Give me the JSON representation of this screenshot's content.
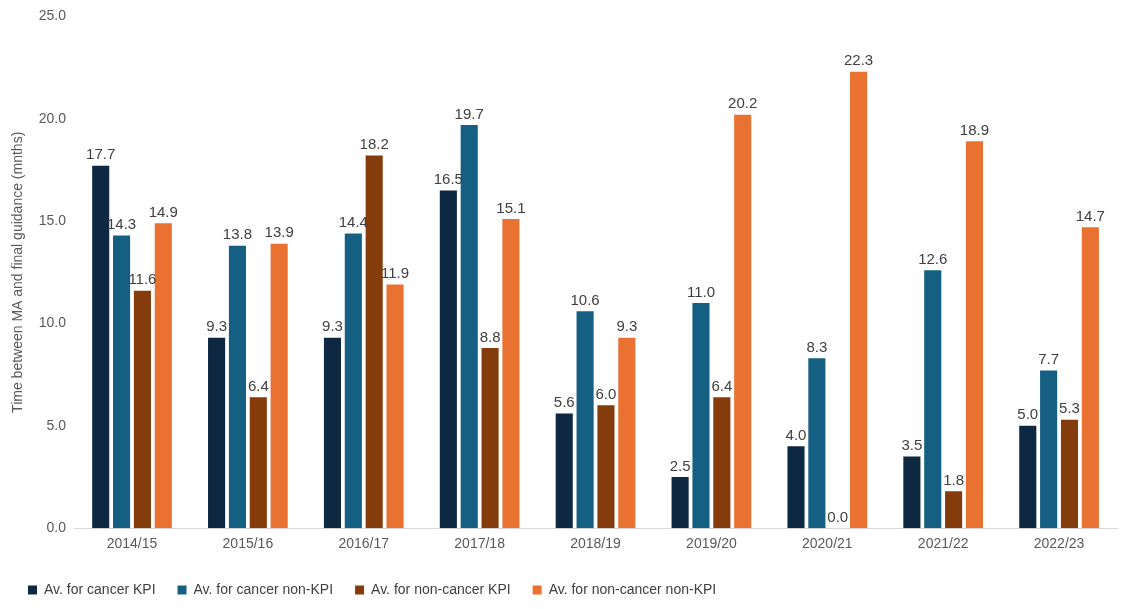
{
  "chart_data": {
    "type": "bar",
    "y_label": "Time between MA and final guidance (mnths)",
    "categories": [
      "2014/15",
      "2015/16",
      "2016/17",
      "2017/18",
      "2018/19",
      "2019/20",
      "2020/21",
      "2021/22",
      "2022/23"
    ],
    "series": [
      {
        "name": "Av. for cancer KPI",
        "color": "#0e2841",
        "values": [
          17.7,
          9.3,
          9.3,
          16.5,
          5.6,
          2.5,
          4.0,
          3.5,
          5.0
        ],
        "value_labels": [
          "17.7",
          "9.3",
          "9.3",
          "16.5",
          "5.6",
          "2.5",
          "4.0",
          "3.5",
          "5.0"
        ]
      },
      {
        "name": "Av. for cancer non-KPI",
        "color": "#156082",
        "values": [
          14.3,
          13.8,
          14.4,
          19.7,
          10.6,
          11.0,
          8.3,
          12.6,
          7.7
        ],
        "value_labels": [
          "14.3",
          "13.8",
          "14.4",
          "19.7",
          "10.6",
          "11.0",
          "8.3",
          "12.6",
          "7.7"
        ]
      },
      {
        "name": "Av. for non-cancer KPI",
        "color": "#843c0c",
        "values": [
          11.6,
          6.4,
          18.2,
          8.8,
          6.0,
          6.4,
          0.0,
          1.8,
          5.3
        ],
        "value_labels": [
          "11.6",
          "6.4",
          "18.2",
          "8.8",
          "6.0",
          "6.4",
          "0.0",
          "1.8",
          "5.3"
        ]
      },
      {
        "name": "Av. for non-cancer non-KPI",
        "color": "#e97132",
        "values": [
          14.9,
          13.9,
          11.9,
          15.1,
          9.3,
          20.2,
          22.3,
          18.9,
          14.7
        ],
        "value_labels": [
          "14.9",
          "13.9",
          "11.9",
          "15.1",
          "9.3",
          "20.2",
          "22.3",
          "18.9",
          "14.7"
        ]
      }
    ],
    "ylim": [
      0,
      25
    ],
    "yticks": [
      {
        "value": 0,
        "label": "0.0"
      },
      {
        "value": 5,
        "label": "5.0"
      },
      {
        "value": 10,
        "label": "10.0"
      },
      {
        "value": 15,
        "label": "15.0"
      },
      {
        "value": 20,
        "label": "20.0"
      },
      {
        "value": 25,
        "label": "25.0"
      }
    ],
    "grid": false,
    "legend": "bottom",
    "data_labels": true
  }
}
